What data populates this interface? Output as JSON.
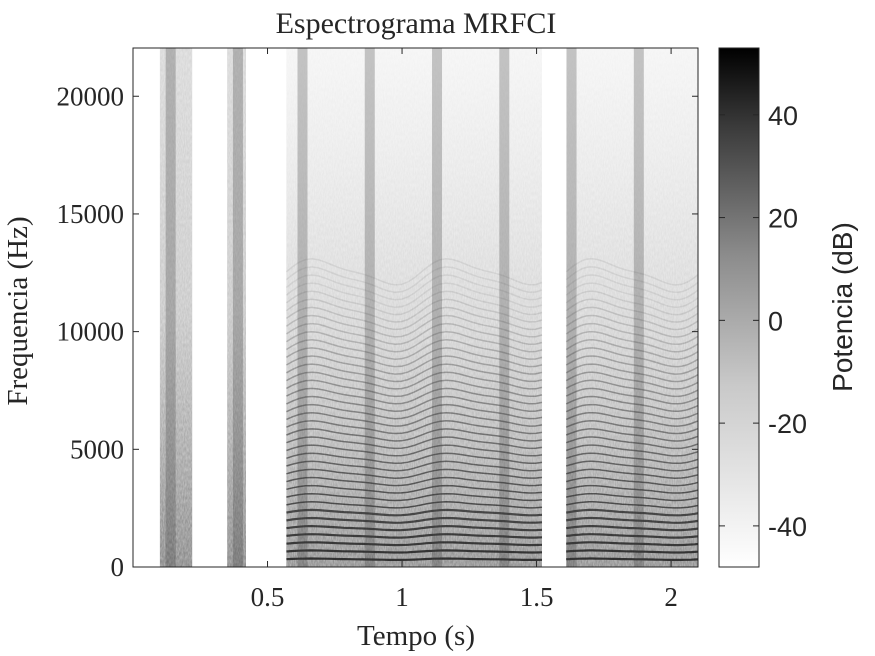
{
  "chart_data": {
    "type": "heatmap",
    "title": "Espectrograma MRFCI",
    "xlabel": "Tempo (s)",
    "ylabel": "Frequencia (Hz)",
    "xlim": [
      0.0,
      2.1
    ],
    "ylim": [
      0,
      22050
    ],
    "xticks": [
      0.5,
      1,
      1.5,
      2
    ],
    "xtick_labels": [
      "0.5",
      "1",
      "1.5",
      "2"
    ],
    "yticks": [
      0,
      5000,
      10000,
      15000,
      20000
    ],
    "ytick_labels": [
      "0",
      "5000",
      "10000",
      "15000",
      "20000"
    ],
    "colorbar": {
      "label": "Potencia (dB)",
      "range": [
        -48,
        53
      ],
      "ticks": [
        -40,
        -20,
        0,
        20,
        40
      ],
      "tick_labels": [
        "-40",
        "-20",
        "0",
        "20",
        "40"
      ],
      "colormap": "gray-reversed"
    },
    "segments": [
      {
        "start": 0.1,
        "end": 0.22,
        "kind": "fricative",
        "reach_hz": 22050
      },
      {
        "start": 0.35,
        "end": 0.42,
        "kind": "fricative",
        "reach_hz": 22050
      },
      {
        "start": 0.57,
        "end": 1.52,
        "kind": "voiced",
        "reach_hz": 22050
      },
      {
        "start": 1.61,
        "end": 2.1,
        "kind": "voiced",
        "reach_hz": 22050
      }
    ],
    "vertical_bursts_s": [
      0.14,
      0.39,
      0.63,
      0.88,
      1.13,
      1.38,
      1.63,
      1.88
    ],
    "grid": false
  }
}
